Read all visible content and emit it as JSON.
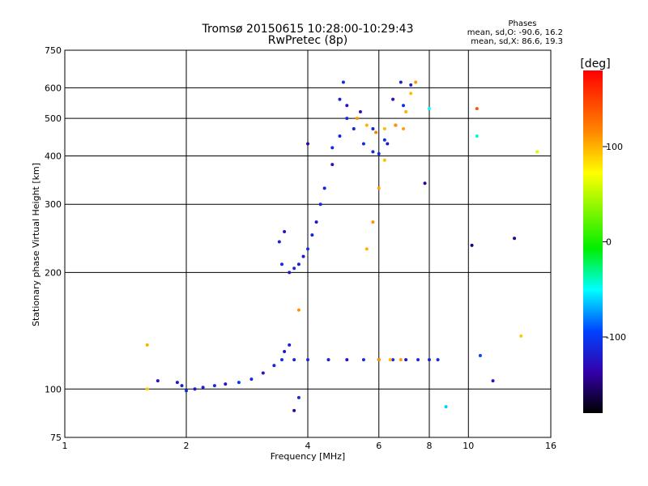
{
  "chart_data": {
    "type": "scatter",
    "title": "Tromsø 20150615 10:28:00-10:29:43",
    "subtitle": "RwPretec (8p)",
    "xlabel": "Frequency [MHz]",
    "ylabel": "Stationary phase Virtual Height [km]",
    "x_scale": "log",
    "y_scale": "log",
    "xlim": [
      1,
      16
    ],
    "ylim": [
      75,
      750
    ],
    "xticks": [
      1,
      2,
      4,
      6,
      8,
      10,
      16
    ],
    "yticks": [
      75,
      100,
      200,
      300,
      400,
      500,
      600,
      750
    ],
    "grid": true,
    "legend_block": {
      "heading": "Phases",
      "line1": "mean, sd,O: -90.6, 16.2",
      "line2": "mean, sd,X: 86.6, 19.3"
    },
    "colorbar": {
      "label": "[deg]",
      "range": [
        -180,
        180
      ],
      "ticks": [
        100,
        0,
        -100
      ]
    },
    "series": [
      {
        "points": [
          [
            1.9,
            104,
            -110
          ],
          [
            1.95,
            102,
            -105
          ],
          [
            2.0,
            99,
            -100
          ],
          [
            2.1,
            100,
            -110
          ],
          [
            2.2,
            101,
            -105
          ],
          [
            2.35,
            102,
            -100
          ],
          [
            2.5,
            103,
            -110
          ],
          [
            2.7,
            104,
            -95
          ],
          [
            2.9,
            106,
            -100
          ],
          [
            3.1,
            110,
            -110
          ],
          [
            3.3,
            115,
            -105
          ],
          [
            3.45,
            119,
            -100
          ],
          [
            3.5,
            125,
            -110
          ],
          [
            3.6,
            130,
            -105
          ],
          [
            3.7,
            119,
            -105
          ],
          [
            4.0,
            119,
            -100
          ],
          [
            4.5,
            119,
            -105
          ],
          [
            5.0,
            119,
            -110
          ],
          [
            5.5,
            119,
            -100
          ],
          [
            6.0,
            119,
            -105
          ],
          [
            6.5,
            119,
            -100
          ],
          [
            7.0,
            119,
            -110
          ],
          [
            7.5,
            119,
            -100
          ],
          [
            8.0,
            119,
            -105
          ],
          [
            8.4,
            119,
            -100
          ],
          [
            3.5,
            255,
            -110
          ],
          [
            3.4,
            240,
            -105
          ],
          [
            3.45,
            210,
            -100
          ],
          [
            3.6,
            200,
            -110
          ],
          [
            3.8,
            210,
            -105
          ],
          [
            4.0,
            230,
            -100
          ],
          [
            4.2,
            270,
            -110
          ],
          [
            4.4,
            330,
            -105
          ],
          [
            4.6,
            420,
            -100
          ],
          [
            4.8,
            560,
            -105
          ],
          [
            4.9,
            620,
            -100
          ],
          [
            5.0,
            540,
            -110
          ],
          [
            5.2,
            470,
            -105
          ],
          [
            5.5,
            430,
            -100
          ],
          [
            5.8,
            410,
            -105
          ],
          [
            6.0,
            405,
            -100
          ],
          [
            6.3,
            430,
            -110
          ],
          [
            6.6,
            480,
            -105
          ],
          [
            6.9,
            540,
            -100
          ],
          [
            7.2,
            610,
            -105
          ],
          [
            3.7,
            205,
            -100
          ],
          [
            3.9,
            220,
            -110
          ],
          [
            4.1,
            250,
            -105
          ],
          [
            4.3,
            300,
            -100
          ],
          [
            4.6,
            380,
            -110
          ],
          [
            4.8,
            450,
            -105
          ],
          [
            5.0,
            500,
            -100
          ],
          [
            5.4,
            520,
            -110
          ],
          [
            5.8,
            470,
            -105
          ],
          [
            6.2,
            440,
            -100
          ],
          [
            6.5,
            560,
            -110
          ],
          [
            6.8,
            620,
            -105
          ],
          [
            5.3,
            500,
            110
          ],
          [
            5.6,
            480,
            100
          ],
          [
            5.9,
            460,
            120
          ],
          [
            6.2,
            470,
            95
          ],
          [
            6.6,
            480,
            110
          ],
          [
            6.9,
            470,
            105
          ],
          [
            7.0,
            520,
            100
          ],
          [
            7.2,
            580,
            95
          ],
          [
            7.4,
            620,
            110
          ],
          [
            5.6,
            230,
            100
          ],
          [
            5.8,
            270,
            110
          ],
          [
            6.0,
            330,
            105
          ],
          [
            6.2,
            390,
            95
          ],
          [
            6.0,
            119,
            110
          ],
          [
            6.4,
            119,
            95
          ],
          [
            6.8,
            119,
            105
          ],
          [
            1.6,
            100,
            90
          ],
          [
            1.6,
            130,
            100
          ],
          [
            1.7,
            105,
            -110
          ],
          [
            8.8,
            90,
            -60
          ],
          [
            10.5,
            530,
            140
          ],
          [
            10.5,
            450,
            -40
          ],
          [
            10.7,
            122,
            -90
          ],
          [
            11.5,
            105,
            -110
          ],
          [
            13.0,
            245,
            -130
          ],
          [
            13.5,
            137,
            90
          ],
          [
            10.2,
            235,
            -140
          ],
          [
            14.8,
            410,
            60
          ],
          [
            4.0,
            430,
            -120
          ],
          [
            7.8,
            340,
            -130
          ],
          [
            3.8,
            160,
            110
          ],
          [
            3.7,
            88,
            -120
          ],
          [
            8.0,
            530,
            -50
          ],
          [
            3.8,
            95,
            -100
          ]
        ]
      }
    ]
  }
}
